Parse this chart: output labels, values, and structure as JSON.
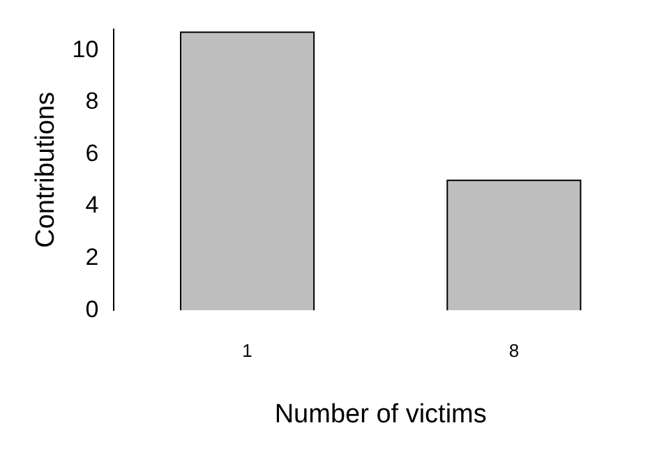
{
  "chart_data": {
    "type": "bar",
    "xlabel": "Number of victims",
    "ylabel": "Contributions",
    "categories": [
      "1",
      "8"
    ],
    "values": [
      10.7,
      5
    ],
    "color": "#bebebe",
    "ylim": [
      0,
      10.8
    ],
    "yticks": [
      0,
      2,
      4,
      6,
      8,
      10
    ],
    "grid": false,
    "legend": false
  }
}
